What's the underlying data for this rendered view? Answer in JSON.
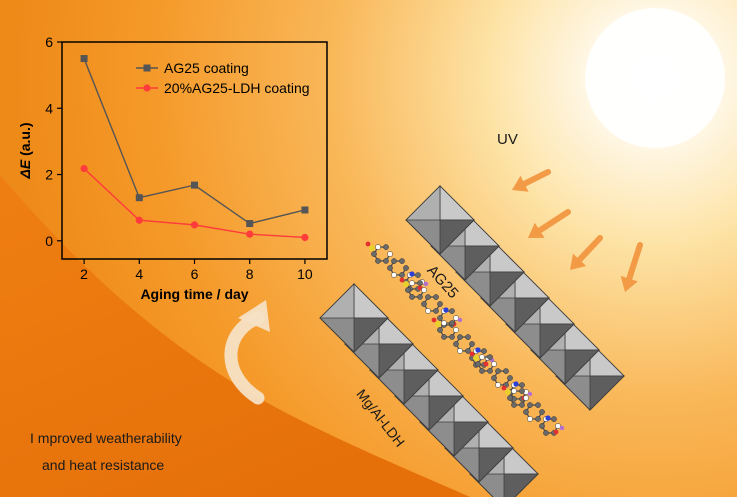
{
  "colors": {
    "series1": "#555555",
    "series2": "#ff3b3b",
    "arrow": "#f29a45",
    "background": "#f59a2a"
  },
  "chart_data": {
    "type": "line",
    "x": [
      2,
      4,
      6,
      8,
      10
    ],
    "xticks": [
      "2",
      "4",
      "6",
      "8",
      "10"
    ],
    "yticks": [
      "0",
      "2",
      "4",
      "6"
    ],
    "xlabel": "Aging time / day",
    "ylabel_symbol": "ΔE",
    "ylabel_unit": " (a.u.)",
    "xlim": [
      1.2,
      10.8
    ],
    "ylim": [
      -0.55,
      6
    ],
    "legend_position": "top-right",
    "series": [
      {
        "name": "AG25 coating",
        "marker": "square",
        "values": [
          5.5,
          1.3,
          1.68,
          0.52,
          0.93
        ]
      },
      {
        "name": "20%AG25-LDH coating",
        "marker": "circle",
        "values": [
          2.18,
          0.62,
          0.48,
          0.2,
          0.1
        ]
      }
    ]
  },
  "labels": {
    "uv": "UV",
    "molecule": "AG25",
    "ldh": "Mg/Al-LDH",
    "caption_line1": "I mproved weatherability",
    "caption_line2": "and heat resistance"
  }
}
